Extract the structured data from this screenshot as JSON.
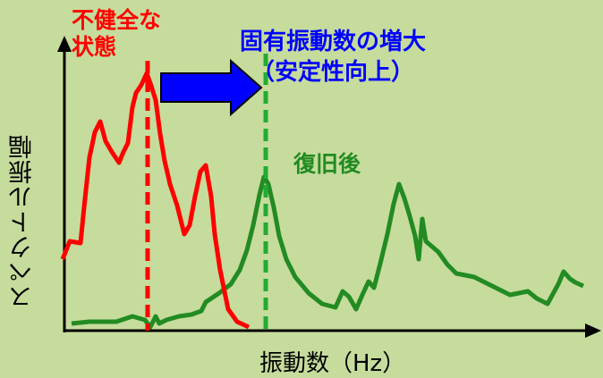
{
  "labels": {
    "unhealthy_line1": "不健全な",
    "unhealthy_line2": "状態",
    "increase_line1": "固有振動数の増大",
    "increase_line2": "（安定性向上）",
    "recovered": "復旧後",
    "y_axis": "スペクトル振幅",
    "x_axis": "振動数（Hz）"
  },
  "colors": {
    "background": "#c6dc9c",
    "unhealthy": "#ff0000",
    "recovered": "#228b22",
    "arrow": "#0000ff",
    "axis": "#000000"
  }
}
